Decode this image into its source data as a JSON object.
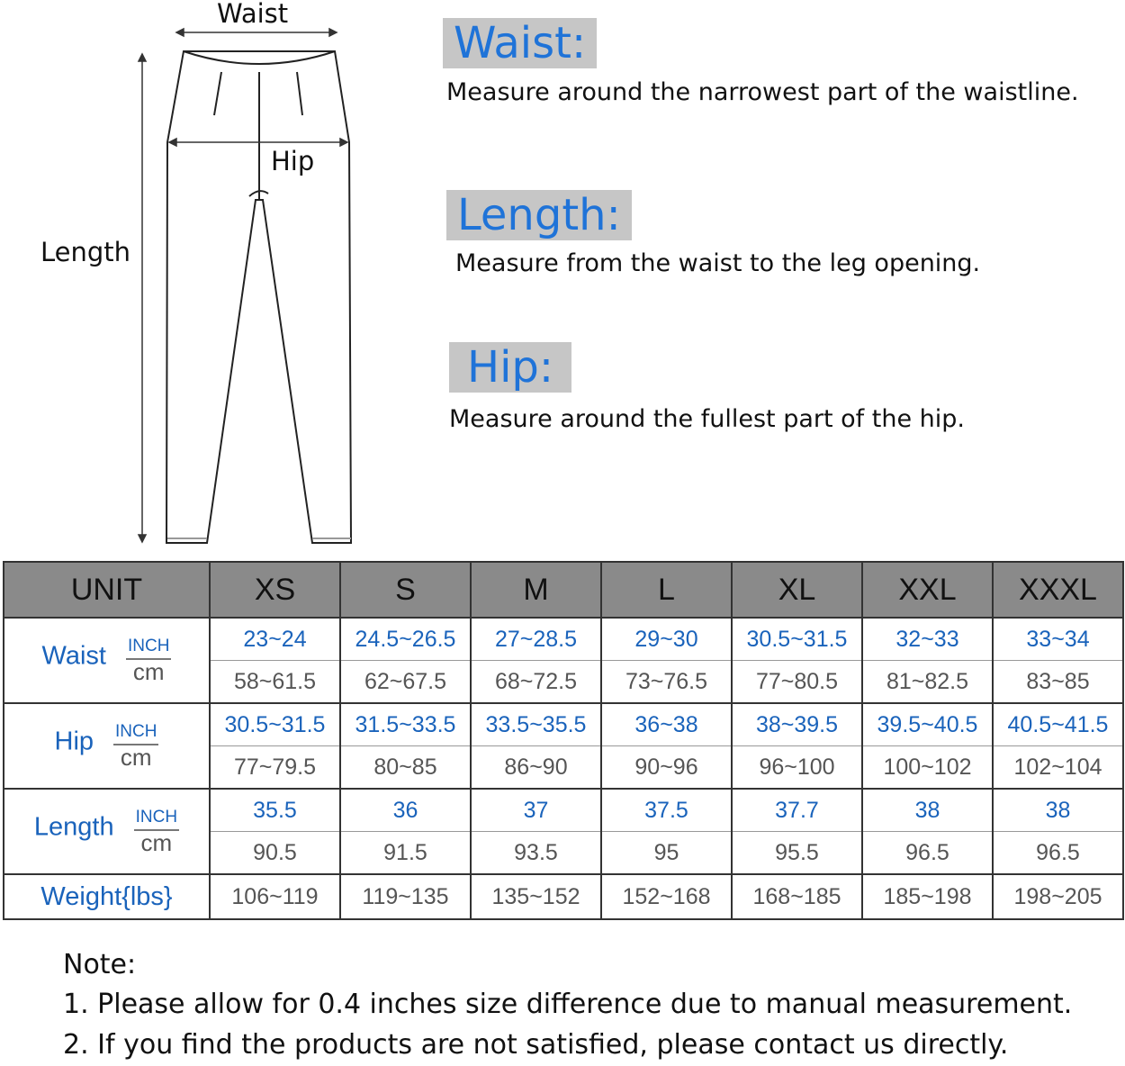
{
  "diagram": {
    "waist_label": "Waist",
    "hip_label": "Hip",
    "length_label": "Length"
  },
  "definitions": [
    {
      "heading": "Waist:",
      "text": "Measure around the narrowest part of the waistline."
    },
    {
      "heading": "Length:",
      "text": "Measure from the waist to the leg opening."
    },
    {
      "heading": "Hip:",
      "text": "Measure around the fullest part of the hip."
    }
  ],
  "colors": {
    "heading_blue": "#1f73d8",
    "heading_bg": "#c6c6c6",
    "header_bg": "#8a8a8a",
    "inch_blue": "#1a63bb",
    "cm_gray": "#555555"
  },
  "table": {
    "unit_header": "UNIT",
    "sizes": [
      "XS",
      "S",
      "M",
      "L",
      "XL",
      "XXL",
      "XXXL"
    ],
    "inch_label": "INCH",
    "cm_label": "cm",
    "rows": [
      {
        "label": "Waist",
        "inch": [
          "23~24",
          "24.5~26.5",
          "27~28.5",
          "29~30",
          "30.5~31.5",
          "32~33",
          "33~34"
        ],
        "cm": [
          "58~61.5",
          "62~67.5",
          "68~72.5",
          "73~76.5",
          "77~80.5",
          "81~82.5",
          "83~85"
        ]
      },
      {
        "label": "Hip",
        "inch": [
          "30.5~31.5",
          "31.5~33.5",
          "33.5~35.5",
          "36~38",
          "38~39.5",
          "39.5~40.5",
          "40.5~41.5"
        ],
        "cm": [
          "77~79.5",
          "80~85",
          "86~90",
          "90~96",
          "96~100",
          "100~102",
          "102~104"
        ]
      },
      {
        "label": "Length",
        "inch": [
          "35.5",
          "36",
          "37",
          "37.5",
          "37.7",
          "38",
          "38"
        ],
        "cm": [
          "90.5",
          "91.5",
          "93.5",
          "95",
          "95.5",
          "96.5",
          "96.5"
        ]
      }
    ],
    "weight": {
      "label": "Weight{lbs}",
      "values": [
        "106~119",
        "119~135",
        "135~152",
        "152~168",
        "168~185",
        "185~198",
        "198~205"
      ]
    }
  },
  "notes": {
    "title": "Note:",
    "items": [
      "1. Please allow for 0.4 inches size difference due to manual measurement.",
      "2. If you find the products are not satisfied, please contact us directly."
    ]
  }
}
